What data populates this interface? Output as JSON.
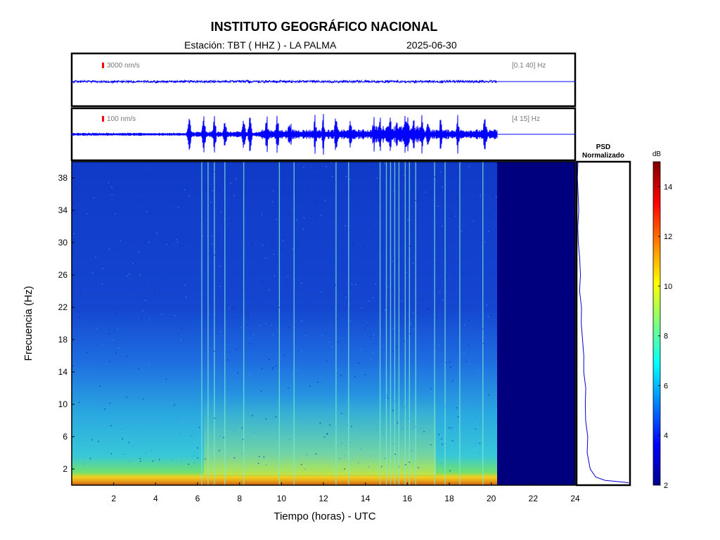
{
  "header": {
    "title": "INSTITUTO GEOGRÁFICO NACIONAL",
    "station": "Estación:  TBT ( HHZ ) - LA PALMA",
    "date": "2025-06-30"
  },
  "colors": {
    "trace": "#0000ff",
    "frame": "#000000",
    "scale_marker": "#ff0000",
    "no_data": "#00007f"
  },
  "chart_data": [
    {
      "type": "line",
      "panel": "seismogram-broadband",
      "scale_label": "3000 nm/s",
      "band_label": "[0.1 40] Hz",
      "data_until_hour": 20.3,
      "xlim": [
        0,
        24
      ]
    },
    {
      "type": "line",
      "panel": "seismogram-filtered",
      "scale_label": "100 nm/s",
      "band_label": "[4 15] Hz",
      "data_until_hour": 20.3,
      "xlim": [
        0,
        24
      ],
      "bursts_hours": [
        5.6,
        6.3,
        6.8,
        7.3,
        8.2,
        8.5,
        9.3,
        9.8,
        10.4,
        11.6,
        12.0,
        12.6,
        13.3,
        14.4,
        14.7,
        15.1,
        15.2,
        15.5,
        15.9,
        16.0,
        16.3,
        16.7,
        17.0,
        17.6,
        18.4,
        19.7
      ]
    },
    {
      "type": "heatmap",
      "panel": "spectrogram",
      "xlabel": "Tiempo (horas) - UTC",
      "ylabel": "Frecuencia  (Hz)",
      "xlim": [
        0,
        24
      ],
      "ylim": [
        0,
        40
      ],
      "x_ticks": [
        2,
        4,
        6,
        8,
        10,
        12,
        14,
        16,
        18,
        20,
        22,
        24
      ],
      "y_ticks": [
        2,
        6,
        10,
        14,
        18,
        22,
        26,
        30,
        34,
        38
      ],
      "data_until_hour": 20.3,
      "colorbar": {
        "label": "dB",
        "range": [
          2,
          15
        ],
        "ticks": [
          2,
          4,
          6,
          8,
          10,
          12,
          14
        ]
      },
      "strong_lines_hours": [
        6.2,
        6.5,
        6.8,
        7.3,
        8.2,
        9.9,
        10.6,
        12.6,
        13.2,
        14.7,
        15.0,
        15.2,
        15.4,
        15.6,
        15.9,
        16.1,
        16.4,
        17.3,
        17.8,
        18.5,
        19.6
      ],
      "low_frequency_band_hz": [
        0,
        2
      ]
    },
    {
      "type": "line",
      "panel": "psd",
      "title": "PSD\nNormalizado",
      "ylim": [
        0,
        40
      ],
      "psd_profile": [
        [
          0.3,
          1.0
        ],
        [
          0.6,
          0.55
        ],
        [
          1,
          0.35
        ],
        [
          2,
          0.25
        ],
        [
          4,
          0.2
        ],
        [
          6,
          0.18
        ],
        [
          8,
          0.16
        ],
        [
          10,
          0.15
        ],
        [
          12,
          0.14
        ],
        [
          14,
          0.12
        ],
        [
          16,
          0.1
        ],
        [
          18,
          0.08
        ],
        [
          20,
          0.06
        ],
        [
          22,
          0.05
        ],
        [
          24,
          0.04
        ],
        [
          26,
          0.03
        ],
        [
          28,
          0.02
        ],
        [
          30,
          0.015
        ],
        [
          32,
          0.01
        ],
        [
          34,
          0.005
        ],
        [
          38,
          0.0
        ],
        [
          40,
          0.0
        ]
      ]
    }
  ]
}
